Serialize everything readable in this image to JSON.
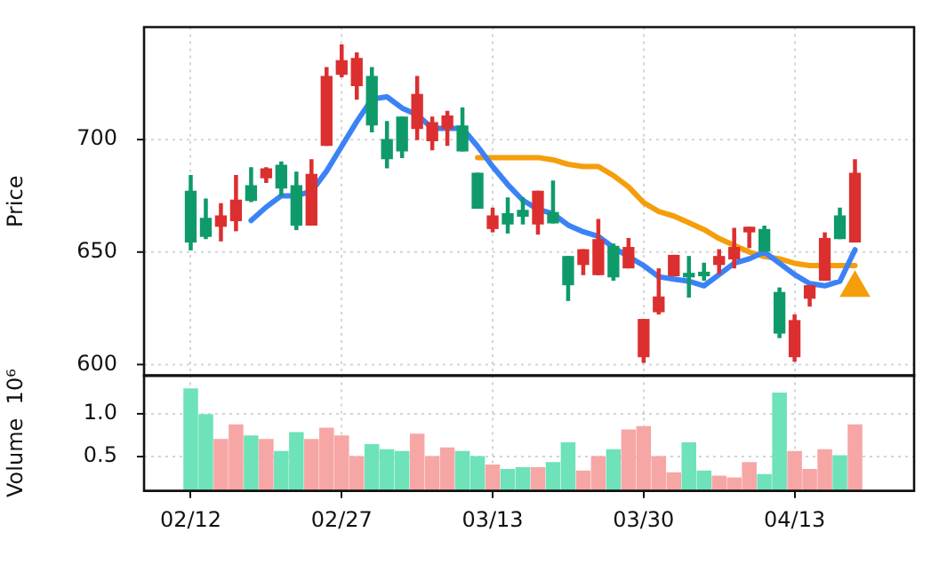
{
  "chart_data": [
    {
      "type": "candlestick",
      "ylabel": "Price",
      "categories": [
        null,
        null,
        null,
        null,
        null,
        null,
        null,
        null,
        null,
        null,
        null,
        null,
        null,
        null,
        null,
        null,
        null,
        null,
        null,
        null,
        null,
        null,
        null,
        null,
        null,
        null,
        null,
        null,
        null,
        null,
        null,
        null,
        null,
        null,
        null,
        null,
        null,
        null,
        null,
        null,
        null,
        null,
        null,
        null,
        null
      ],
      "ohlc": [
        [
          677,
          684,
          651,
          654.5
        ],
        [
          665,
          673.5,
          656,
          657
        ],
        [
          661.5,
          671.5,
          655,
          666
        ],
        [
          664,
          684,
          659.5,
          673
        ],
        [
          679.5,
          687.5,
          672.5,
          673
        ],
        [
          683,
          687.5,
          681,
          687
        ],
        [
          688.5,
          690,
          675,
          678.5
        ],
        [
          679.5,
          685.5,
          660,
          662
        ],
        [
          662,
          691,
          662,
          684.5
        ],
        [
          697.5,
          732,
          697.5,
          728
        ],
        [
          729,
          742,
          728,
          735
        ],
        [
          724,
          738.5,
          718,
          736
        ],
        [
          728,
          732,
          703.5,
          706.5
        ],
        [
          700,
          708,
          687.5,
          691.5
        ],
        [
          710,
          710,
          692,
          695
        ],
        [
          705,
          728,
          700,
          720
        ],
        [
          699.5,
          710,
          695.5,
          707.5
        ],
        [
          705,
          712.5,
          697.5,
          710.5
        ],
        [
          706,
          714,
          695,
          695
        ],
        [
          685,
          685,
          669.5,
          669.5
        ],
        [
          660.5,
          669.5,
          659,
          666
        ],
        [
          667,
          674,
          658.5,
          662.5
        ],
        [
          668.5,
          674,
          662.5,
          666
        ],
        [
          662.5,
          677,
          658,
          677
        ],
        [
          667.5,
          681.5,
          663,
          663
        ],
        [
          648,
          648,
          628.5,
          635.5
        ],
        [
          644.5,
          651,
          640,
          651
        ],
        [
          640,
          664.5,
          640,
          655.5
        ],
        [
          652.5,
          653.5,
          637.5,
          639
        ],
        [
          643,
          656,
          643,
          652
        ],
        [
          603.5,
          620,
          601,
          620
        ],
        [
          623.5,
          642.5,
          622.5,
          630
        ],
        [
          639.5,
          648.5,
          639.5,
          648.5
        ],
        [
          640.5,
          648,
          630,
          639
        ],
        [
          641,
          645,
          637.5,
          639.5
        ],
        [
          644.5,
          651,
          640.5,
          648
        ],
        [
          647,
          660.5,
          643,
          652
        ],
        [
          659,
          661,
          652,
          661
        ],
        [
          660,
          661.5,
          650.5,
          650.5
        ],
        [
          632,
          634,
          612,
          614
        ],
        [
          603.5,
          622,
          601.5,
          619.5
        ],
        [
          629.5,
          635,
          626,
          635
        ],
        [
          637.5,
          658.5,
          637.5,
          656
        ],
        [
          666,
          669.5,
          656,
          656
        ],
        [
          654.5,
          691,
          654.5,
          685
        ]
      ],
      "colors": [
        "#0f9a6a",
        "#0f9a6a",
        "#dc2f2f",
        "#dc2f2f",
        "#0f9a6a",
        "#dc2f2f",
        "#0f9a6a",
        "#0f9a6a",
        "#dc2f2f",
        "#dc2f2f",
        "#dc2f2f",
        "#dc2f2f",
        "#0f9a6a",
        "#0f9a6a",
        "#0f9a6a",
        "#dc2f2f",
        "#dc2f2f",
        "#dc2f2f",
        "#0f9a6a",
        "#0f9a6a",
        "#dc2f2f",
        "#0f9a6a",
        "#0f9a6a",
        "#dc2f2f",
        "#0f9a6a",
        "#0f9a6a",
        "#dc2f2f",
        "#dc2f2f",
        "#0f9a6a",
        "#dc2f2f",
        "#dc2f2f",
        "#dc2f2f",
        "#dc2f2f",
        "#0f9a6a",
        "#0f9a6a",
        "#dc2f2f",
        "#dc2f2f",
        "#dc2f2f",
        "#0f9a6a",
        "#0f9a6a",
        "#dc2f2f",
        "#dc2f2f",
        "#dc2f2f",
        "#0f9a6a",
        "#dc2f2f"
      ],
      "series": [
        {
          "type": "line",
          "color": "#3b82f6",
          "values": [
            null,
            null,
            null,
            null,
            664,
            670,
            675,
            675,
            677,
            686,
            697,
            708,
            718,
            719,
            714,
            711,
            705,
            705,
            705,
            697,
            688,
            680,
            673,
            669,
            667,
            662,
            659,
            657,
            652,
            648,
            644,
            639,
            638,
            637,
            635,
            640,
            645,
            647,
            650,
            645,
            640,
            636,
            635,
            637,
            651
          ]
        },
        {
          "type": "line",
          "color": "#f59e0b",
          "values": [
            null,
            null,
            null,
            null,
            null,
            null,
            null,
            null,
            null,
            null,
            null,
            null,
            null,
            null,
            null,
            null,
            null,
            null,
            null,
            692,
            692,
            692,
            692,
            692,
            691,
            689,
            688,
            688,
            684,
            679,
            672,
            668,
            666,
            663,
            660,
            656,
            653,
            650,
            648,
            647,
            645,
            644,
            644,
            644,
            644
          ]
        },
        {
          "type": "scatter",
          "color": "#f59e0b",
          "marker": "triangle",
          "values": [
            null,
            null,
            null,
            null,
            null,
            null,
            null,
            null,
            null,
            null,
            null,
            null,
            null,
            null,
            null,
            null,
            null,
            null,
            null,
            null,
            null,
            null,
            null,
            null,
            null,
            null,
            null,
            null,
            null,
            null,
            null,
            null,
            null,
            null,
            null,
            null,
            null,
            null,
            null,
            null,
            null,
            null,
            null,
            null,
            634
          ]
        }
      ],
      "ylim": [
        595,
        750
      ],
      "yticks": [
        600,
        650,
        700
      ],
      "grid": true,
      "tick_labels": "y"
    },
    {
      "type": "bar",
      "ylabel": "Volume  10⁶",
      "categories": [
        "02/12",
        null,
        null,
        null,
        null,
        null,
        null,
        null,
        null,
        null,
        "02/27",
        null,
        null,
        null,
        null,
        null,
        null,
        null,
        null,
        null,
        "03/13",
        null,
        null,
        null,
        null,
        null,
        null,
        null,
        null,
        null,
        "03/30",
        null,
        null,
        null,
        null,
        null,
        null,
        null,
        null,
        null,
        "04/13",
        null,
        null,
        null,
        null
      ],
      "values": [
        1.29,
        0.99,
        0.7,
        0.87,
        0.74,
        0.7,
        0.56,
        0.78,
        0.7,
        0.83,
        0.74,
        0.5,
        0.64,
        0.58,
        0.56,
        0.76,
        0.5,
        0.6,
        0.56,
        0.5,
        0.4,
        0.35,
        0.37,
        0.37,
        0.43,
        0.66,
        0.33,
        0.5,
        0.58,
        0.81,
        0.85,
        0.5,
        0.31,
        0.66,
        0.33,
        0.27,
        0.25,
        0.43,
        0.29,
        1.24,
        0.56,
        0.35,
        0.58,
        0.51,
        0.87
      ],
      "colors": [
        "#6ee2b9",
        "#6ee2b9",
        "#f7a6a6",
        "#f7a6a6",
        "#6ee2b9",
        "#f7a6a6",
        "#6ee2b9",
        "#6ee2b9",
        "#f7a6a6",
        "#f7a6a6",
        "#f7a6a6",
        "#f7a6a6",
        "#6ee2b9",
        "#6ee2b9",
        "#6ee2b9",
        "#f7a6a6",
        "#f7a6a6",
        "#f7a6a6",
        "#6ee2b9",
        "#6ee2b9",
        "#f7a6a6",
        "#6ee2b9",
        "#6ee2b9",
        "#f7a6a6",
        "#6ee2b9",
        "#6ee2b9",
        "#f7a6a6",
        "#f7a6a6",
        "#6ee2b9",
        "#f7a6a6",
        "#f7a6a6",
        "#f7a6a6",
        "#f7a6a6",
        "#6ee2b9",
        "#6ee2b9",
        "#f7a6a6",
        "#f7a6a6",
        "#f7a6a6",
        "#6ee2b9",
        "#6ee2b9",
        "#f7a6a6",
        "#f7a6a6",
        "#f7a6a6",
        "#6ee2b9",
        "#f7a6a6"
      ],
      "ylim": [
        0.1,
        1.45
      ],
      "yticks": [
        0.5,
        {
          "value": 1,
          "label": "1.0"
        }
      ],
      "grid": true
    }
  ]
}
